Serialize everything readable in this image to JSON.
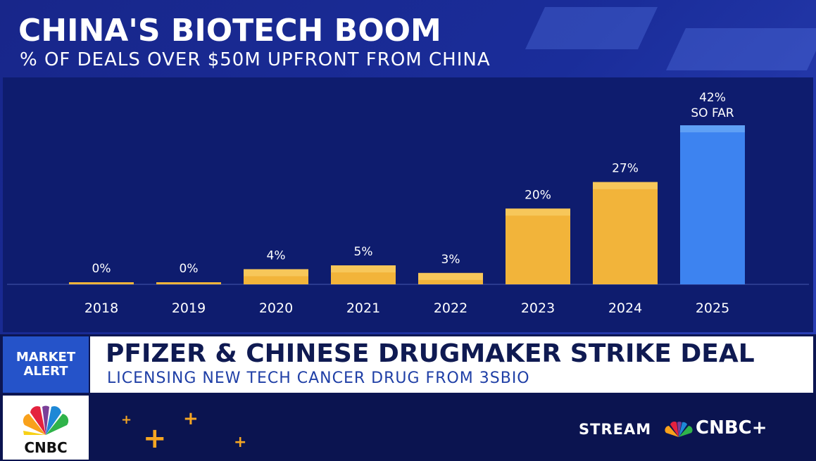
{
  "header": {
    "title": "CHINA'S BIOTECH BOOM",
    "subtitle": "% OF DEALS OVER $50M UPFRONT FROM CHINA"
  },
  "chart_data": {
    "type": "bar",
    "title": "CHINA'S BIOTECH BOOM",
    "subtitle": "% OF DEALS OVER $50M UPFRONT FROM CHINA",
    "categories": [
      "2018",
      "2019",
      "2020",
      "2021",
      "2022",
      "2023",
      "2024",
      "2025"
    ],
    "values": [
      0,
      0,
      4,
      5,
      3,
      20,
      27,
      42
    ],
    "data_labels": [
      "0%",
      "0%",
      "4%",
      "5%",
      "3%",
      "20%",
      "27%",
      "42%"
    ],
    "annotations": [
      {
        "category": "2025",
        "text": "SO FAR"
      }
    ],
    "ylim": [
      0,
      42
    ],
    "grid": false,
    "colors": {
      "default": "#f2b43a",
      "highlight": "#3d83f0",
      "highlight_category": "2025"
    }
  },
  "ticker": {
    "alert_line1": "MARKET",
    "alert_line2": "ALERT",
    "headline": "PFIZER & CHINESE DRUGMAKER STRIKE DEAL",
    "subheadline": "LICENSING NEW TECH CANCER DRUG FROM 3SBIO"
  },
  "footer": {
    "logo_text": "CNBC",
    "stream_label": "STREAM",
    "service_label": "CNBC+"
  },
  "colors": {
    "background": "#1a2d9a",
    "panel": "#0e1c6e",
    "bar": "#f2b43a",
    "bar_highlight": "#3d83f0",
    "alert": "#2553c9",
    "accent": "#f5a623"
  }
}
